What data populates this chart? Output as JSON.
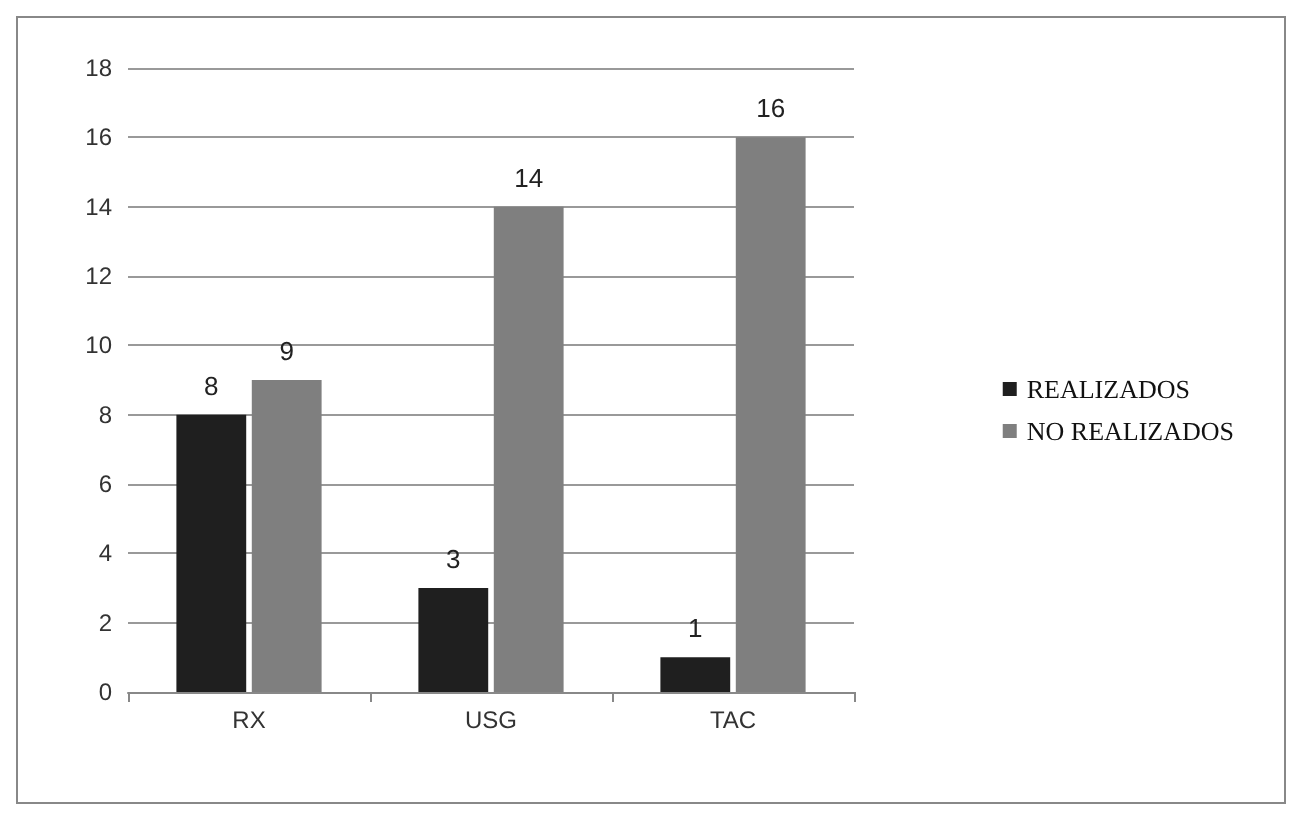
{
  "chart_data": {
    "type": "bar",
    "categories": [
      "RX",
      "USG",
      "TAC"
    ],
    "series": [
      {
        "name": "REALIZADOS",
        "color": "#1f1f1f",
        "values": [
          8,
          3,
          1
        ]
      },
      {
        "name": "NO REALIZADOS",
        "color": "#7f7f7f",
        "values": [
          9,
          14,
          16
        ]
      }
    ],
    "ylim": [
      0,
      18
    ],
    "yticks": [
      0,
      2,
      4,
      6,
      8,
      10,
      12,
      14,
      16,
      18
    ],
    "grid": "y",
    "legend": "right",
    "data_labels": true
  }
}
